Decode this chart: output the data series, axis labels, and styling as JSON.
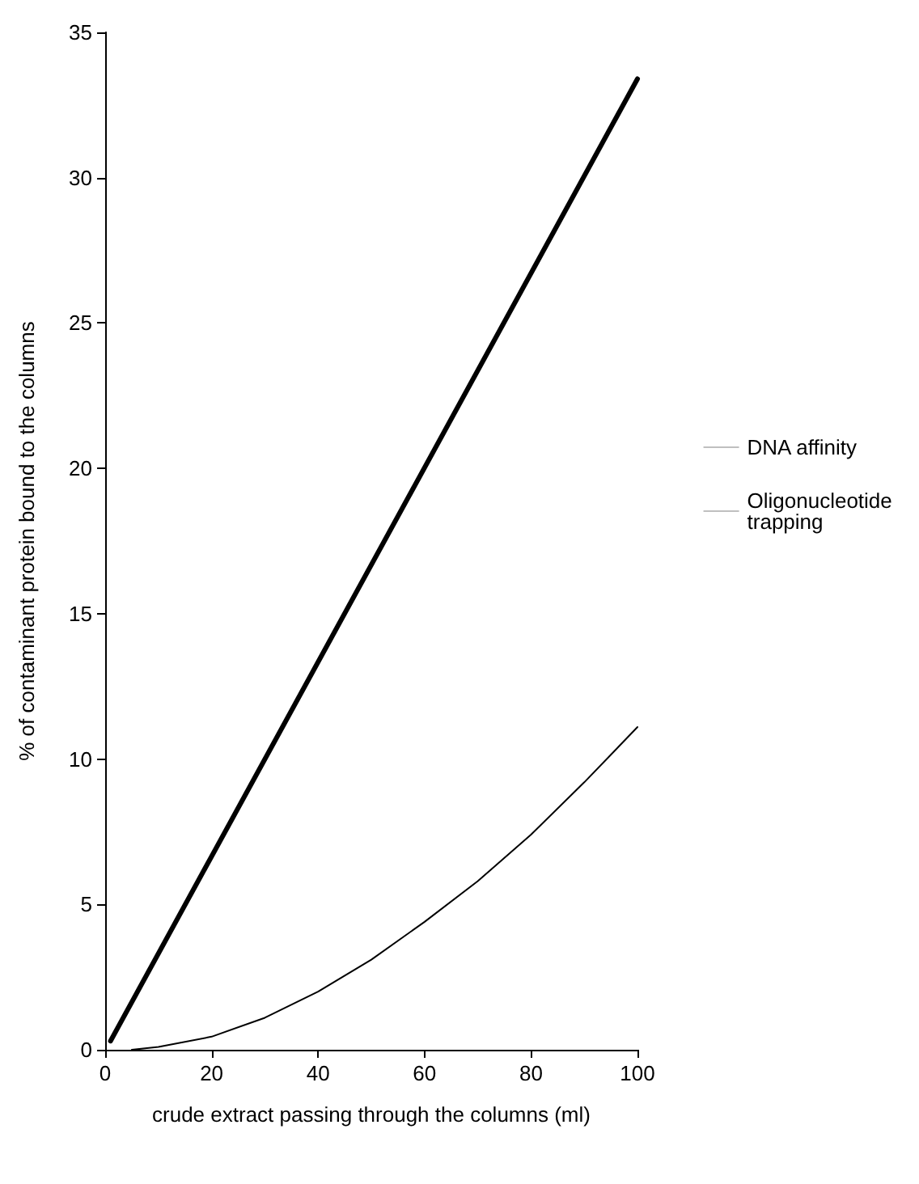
{
  "chart_data": {
    "type": "line",
    "xlabel": "crude extract passing through the columns (ml)",
    "ylabel": "% of contaminant protein bound to the columns",
    "xlim": [
      0,
      100
    ],
    "xticks": [
      0,
      20,
      40,
      60,
      80,
      100
    ],
    "ylim": [
      0,
      35
    ],
    "yticks": [
      0,
      5,
      10,
      15,
      20,
      25,
      30,
      35
    ],
    "series": [
      {
        "name": "DNA affinity",
        "color": "#000000",
        "x": [
          1,
          100
        ],
        "values": [
          0.3,
          33.4
        ]
      },
      {
        "name": "Oligonucleotide trapping",
        "color": "#000000",
        "x": [
          5,
          10,
          20,
          30,
          40,
          50,
          60,
          70,
          80,
          90,
          100
        ],
        "values": [
          0,
          0.1,
          0.45,
          1.1,
          2.0,
          3.1,
          4.4,
          5.8,
          7.4,
          9.2,
          11.1
        ]
      }
    ],
    "legend": "right",
    "grid": false,
    "marker": "none",
    "line_style": "solid"
  }
}
